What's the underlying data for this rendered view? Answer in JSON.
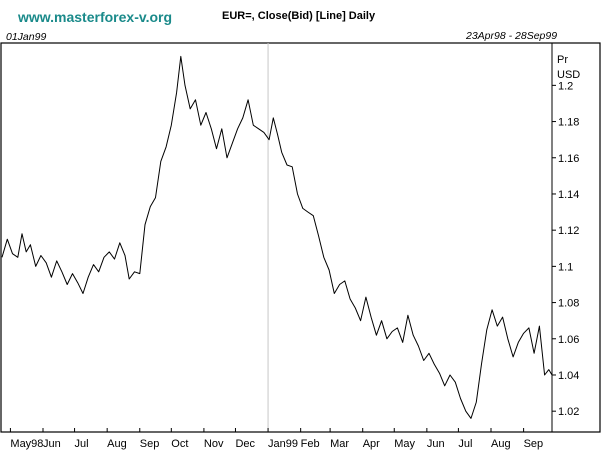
{
  "header": {
    "website": "www.masterforex-v.org",
    "title": "EUR=, Close(Bid) [Line] Daily",
    "marker_date": "01Jan99",
    "date_range": "23Apr98 - 28Sep99"
  },
  "colors": {
    "website": "#1a8a8a",
    "line": "#000000",
    "frame": "#000000",
    "background": "#ffffff"
  },
  "chart_data": {
    "type": "line",
    "title": "EUR=, Close(Bid) [Line] Daily",
    "ylabel_lines": [
      "Pr",
      "USD"
    ],
    "xlabel": "",
    "yticks": [
      1.02,
      1.04,
      1.06,
      1.08,
      1.1,
      1.12,
      1.14,
      1.16,
      1.18,
      1.2
    ],
    "ytick_labels": [
      "1.02",
      "1.04",
      "1.06",
      "1.08",
      "1.1",
      "1.12",
      "1.14",
      "1.16",
      "1.18",
      "1.2"
    ],
    "ylim": [
      1.0085,
      1.2234
    ],
    "xlim": [
      "1998-04-23",
      "1999-09-28"
    ],
    "xticks": [
      {
        "label": "May98",
        "date": "1998-05-01"
      },
      {
        "label": "Jun",
        "date": "1998-06-01"
      },
      {
        "label": "Jul",
        "date": "1998-07-01"
      },
      {
        "label": "Aug",
        "date": "1998-08-01"
      },
      {
        "label": "Sep",
        "date": "1998-09-01"
      },
      {
        "label": "Oct",
        "date": "1998-10-01"
      },
      {
        "label": "Nov",
        "date": "1998-11-01"
      },
      {
        "label": "Dec",
        "date": "1998-12-01"
      },
      {
        "label": "Jan99",
        "date": "1999-01-01"
      },
      {
        "label": "Feb",
        "date": "1999-02-01"
      },
      {
        "label": "Mar",
        "date": "1999-03-01"
      },
      {
        "label": "Apr",
        "date": "1999-04-01"
      },
      {
        "label": "May",
        "date": "1999-05-01"
      },
      {
        "label": "Jun",
        "date": "1999-06-01"
      },
      {
        "label": "Jul",
        "date": "1999-07-01"
      },
      {
        "label": "Aug",
        "date": "1999-08-01"
      },
      {
        "label": "Sep",
        "date": "1999-09-01"
      }
    ],
    "x_marker_date": "1999-01-01",
    "grid": false,
    "series": [
      {
        "values": [
          [
            "1998-04-23",
            1.105
          ],
          [
            "1998-04-28",
            1.115
          ],
          [
            "1998-05-03",
            1.107
          ],
          [
            "1998-05-08",
            1.105
          ],
          [
            "1998-05-12",
            1.118
          ],
          [
            "1998-05-16",
            1.108
          ],
          [
            "1998-05-20",
            1.112
          ],
          [
            "1998-05-25",
            1.1
          ],
          [
            "1998-05-30",
            1.106
          ],
          [
            "1998-06-04",
            1.102
          ],
          [
            "1998-06-09",
            1.094
          ],
          [
            "1998-06-14",
            1.103
          ],
          [
            "1998-06-19",
            1.097
          ],
          [
            "1998-06-24",
            1.09
          ],
          [
            "1998-06-29",
            1.096
          ],
          [
            "1998-07-04",
            1.091
          ],
          [
            "1998-07-09",
            1.085
          ],
          [
            "1998-07-14",
            1.094
          ],
          [
            "1998-07-19",
            1.101
          ],
          [
            "1998-07-24",
            1.097
          ],
          [
            "1998-07-29",
            1.105
          ],
          [
            "1998-08-03",
            1.108
          ],
          [
            "1998-08-08",
            1.104
          ],
          [
            "1998-08-13",
            1.113
          ],
          [
            "1998-08-18",
            1.106
          ],
          [
            "1998-08-22",
            1.093
          ],
          [
            "1998-08-27",
            1.097
          ],
          [
            "1998-09-01",
            1.096
          ],
          [
            "1998-09-06",
            1.123
          ],
          [
            "1998-09-11",
            1.133
          ],
          [
            "1998-09-16",
            1.138
          ],
          [
            "1998-09-21",
            1.158
          ],
          [
            "1998-09-26",
            1.166
          ],
          [
            "1998-10-01",
            1.178
          ],
          [
            "1998-10-06",
            1.196
          ],
          [
            "1998-10-10",
            1.216
          ],
          [
            "1998-10-14",
            1.2
          ],
          [
            "1998-10-19",
            1.187
          ],
          [
            "1998-10-24",
            1.192
          ],
          [
            "1998-10-29",
            1.178
          ],
          [
            "1998-11-03",
            1.185
          ],
          [
            "1998-11-08",
            1.176
          ],
          [
            "1998-11-13",
            1.165
          ],
          [
            "1998-11-18",
            1.176
          ],
          [
            "1998-11-23",
            1.16
          ],
          [
            "1998-11-28",
            1.168
          ],
          [
            "1998-12-03",
            1.176
          ],
          [
            "1998-12-08",
            1.182
          ],
          [
            "1998-12-13",
            1.192
          ],
          [
            "1998-12-18",
            1.178
          ],
          [
            "1998-12-23",
            1.176
          ],
          [
            "1998-12-28",
            1.174
          ],
          [
            "1999-01-02",
            1.17
          ],
          [
            "1999-01-06",
            1.182
          ],
          [
            "1999-01-10",
            1.173
          ],
          [
            "1999-01-14",
            1.163
          ],
          [
            "1999-01-19",
            1.156
          ],
          [
            "1999-01-24",
            1.155
          ],
          [
            "1999-01-29",
            1.14
          ],
          [
            "1999-02-03",
            1.132
          ],
          [
            "1999-02-08",
            1.13
          ],
          [
            "1999-02-13",
            1.128
          ],
          [
            "1999-02-18",
            1.117
          ],
          [
            "1999-02-23",
            1.105
          ],
          [
            "1999-02-28",
            1.098
          ],
          [
            "1999-03-05",
            1.085
          ],
          [
            "1999-03-10",
            1.09
          ],
          [
            "1999-03-15",
            1.092
          ],
          [
            "1999-03-20",
            1.082
          ],
          [
            "1999-03-25",
            1.077
          ],
          [
            "1999-03-30",
            1.07
          ],
          [
            "1999-04-04",
            1.083
          ],
          [
            "1999-04-09",
            1.072
          ],
          [
            "1999-04-14",
            1.062
          ],
          [
            "1999-04-19",
            1.07
          ],
          [
            "1999-04-24",
            1.06
          ],
          [
            "1999-04-29",
            1.064
          ],
          [
            "1999-05-04",
            1.066
          ],
          [
            "1999-05-09",
            1.058
          ],
          [
            "1999-05-14",
            1.073
          ],
          [
            "1999-05-19",
            1.062
          ],
          [
            "1999-05-24",
            1.056
          ],
          [
            "1999-05-29",
            1.048
          ],
          [
            "1999-06-03",
            1.052
          ],
          [
            "1999-06-08",
            1.046
          ],
          [
            "1999-06-13",
            1.041
          ],
          [
            "1999-06-18",
            1.034
          ],
          [
            "1999-06-23",
            1.04
          ],
          [
            "1999-06-28",
            1.036
          ],
          [
            "1999-07-03",
            1.027
          ],
          [
            "1999-07-08",
            1.02
          ],
          [
            "1999-07-13",
            1.016
          ],
          [
            "1999-07-18",
            1.025
          ],
          [
            "1999-07-23",
            1.046
          ],
          [
            "1999-07-28",
            1.065
          ],
          [
            "1999-08-02",
            1.076
          ],
          [
            "1999-08-07",
            1.067
          ],
          [
            "1999-08-12",
            1.072
          ],
          [
            "1999-08-17",
            1.06
          ],
          [
            "1999-08-22",
            1.05
          ],
          [
            "1999-08-27",
            1.058
          ],
          [
            "1999-09-01",
            1.063
          ],
          [
            "1999-09-06",
            1.066
          ],
          [
            "1999-09-11",
            1.052
          ],
          [
            "1999-09-16",
            1.067
          ],
          [
            "1999-09-21",
            1.04
          ],
          [
            "1999-09-25",
            1.043
          ],
          [
            "1999-09-28",
            1.04
          ]
        ]
      }
    ]
  }
}
